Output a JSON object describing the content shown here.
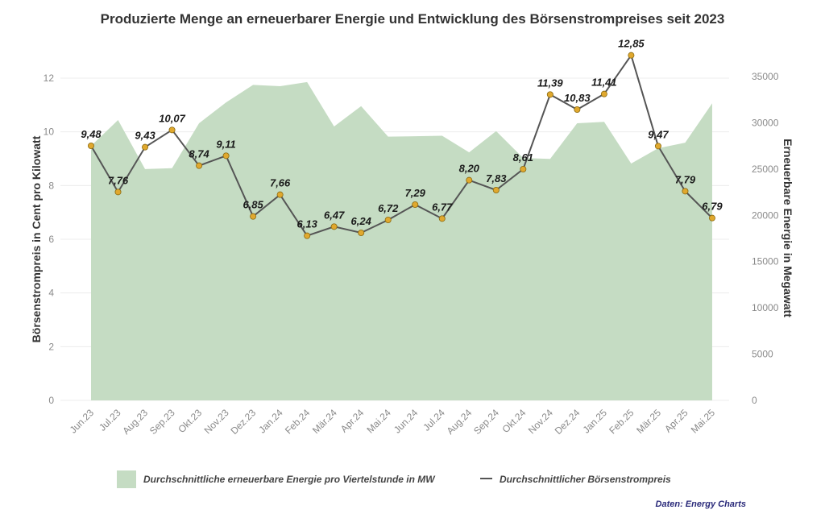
{
  "chart_data": {
    "type": "line+area",
    "title": "Produzierte Menge an erneuerbarer Energie und Entwicklung des Börsenstrompreises seit 2023",
    "ylabel_left": "Börsenstrompreis in Cent pro Kilowatt",
    "ylabel_right": "Erneuerbare Energie in Megawatt",
    "ylim_left": [
      0,
      12
    ],
    "ylim_right": [
      0,
      35000
    ],
    "yticks_left": [
      "0",
      "2",
      "4",
      "6",
      "8",
      "10",
      "12"
    ],
    "yticks_right": [
      "0",
      "5000",
      "10000",
      "15000",
      "20000",
      "25000",
      "30000",
      "35000"
    ],
    "grid": true,
    "categories": [
      "Jun.23",
      "Jul.23",
      "Aug.23",
      "Sep.23",
      "Okt.23",
      "Nov.23",
      "Dez.23",
      "Jan.24",
      "Feb.24",
      "Mär.24",
      "Apr.24",
      "Mai.24",
      "Jun.24",
      "Jul.24",
      "Aug.24",
      "Sep.24",
      "Okt.24",
      "Nov.24",
      "Dez.24",
      "Jan.25",
      "Feb.25",
      "Mär.25",
      "Apr.25",
      "Mai.25"
    ],
    "series": [
      {
        "name": "Durchschnittliche erneuerbare Energie pro Viertelstunde in MW",
        "type": "area",
        "axis": "right",
        "color": "#c5dcc3",
        "values": [
          27500,
          30300,
          25000,
          25100,
          29950,
          32200,
          34100,
          33950,
          34400,
          29600,
          31800,
          28500,
          28550,
          28600,
          26800,
          29100,
          26200,
          26100,
          29950,
          30100,
          25600,
          27250,
          27850,
          32100
        ]
      },
      {
        "name": "Durchschnittlicher Börsenstrompreis",
        "type": "line",
        "axis": "left",
        "color": "#555555",
        "marker_color": "#e0a82e",
        "values": [
          9.48,
          7.76,
          9.43,
          10.07,
          8.74,
          9.11,
          6.85,
          7.66,
          6.13,
          6.47,
          6.24,
          6.72,
          7.29,
          6.77,
          8.2,
          7.83,
          8.61,
          11.39,
          10.83,
          11.41,
          12.85,
          9.47,
          7.79,
          6.79
        ],
        "labels": [
          "9,48",
          "7,76",
          "9,43",
          "10,07",
          "8,74",
          "9,11",
          "6,85",
          "7,66",
          "6,13",
          "6,47",
          "6,24",
          "6,72",
          "7,29",
          "6,77",
          "8,20",
          "7,83",
          "8,61",
          "11,39",
          "10,83",
          "11,41",
          "12,85",
          "9,47",
          "7,79",
          "6,79"
        ]
      }
    ],
    "legend_position": "bottom",
    "source": "Daten: Energy Charts"
  }
}
